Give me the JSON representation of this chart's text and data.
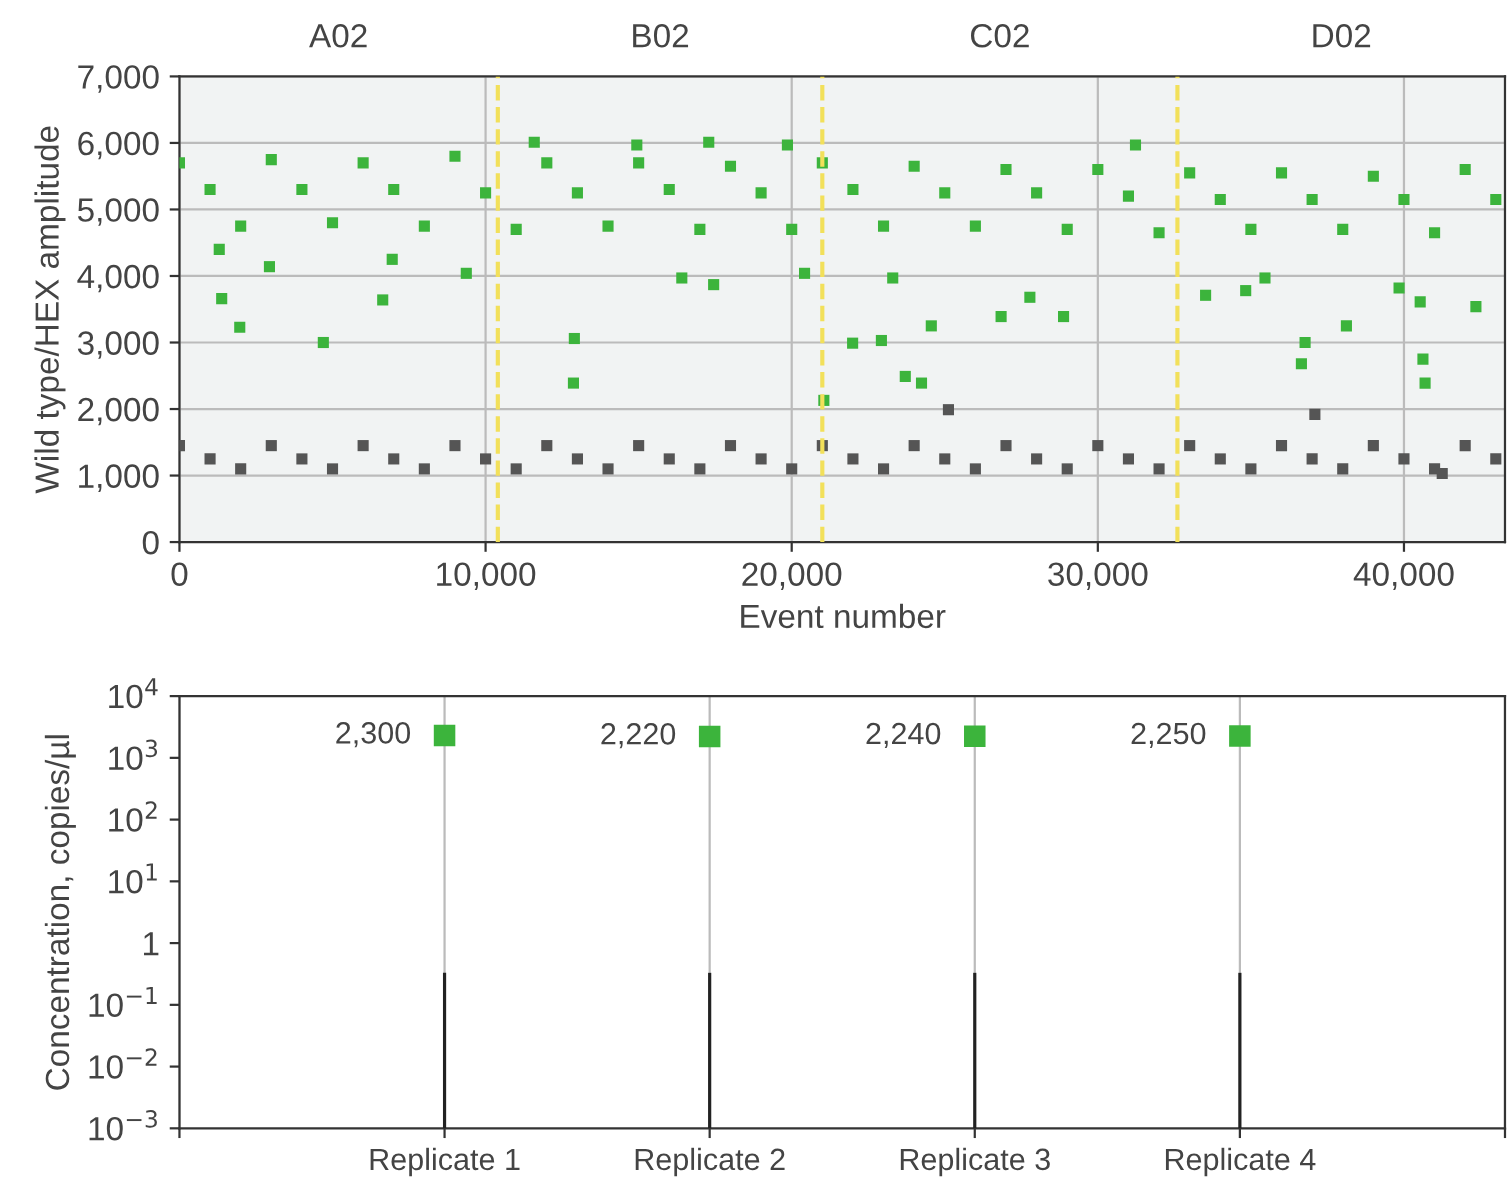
{
  "chart_data": [
    {
      "type": "scatter",
      "xlabel": "Event number",
      "ylabel": "Wild type/HEX amplitude",
      "xlim": [
        0,
        43300
      ],
      "ylim": [
        0,
        7000
      ],
      "xticks": [
        {
          "value": 0,
          "label": "0"
        },
        {
          "value": 10000,
          "label": "10,000"
        },
        {
          "value": 20000,
          "label": "20,000"
        },
        {
          "value": 30000,
          "label": "30,000"
        },
        {
          "value": 40000,
          "label": "40,000"
        }
      ],
      "yticks": [
        {
          "value": 0,
          "label": "0"
        },
        {
          "value": 1000,
          "label": "1,000"
        },
        {
          "value": 2000,
          "label": "2,000"
        },
        {
          "value": 3000,
          "label": "3,000"
        },
        {
          "value": 4000,
          "label": "4,000"
        },
        {
          "value": 5000,
          "label": "5,000"
        },
        {
          "value": 6000,
          "label": "6,000"
        },
        {
          "value": 7000,
          "label": "7,000"
        }
      ],
      "grid": true,
      "legend": false,
      "marker": "square",
      "series": [
        {
          "color": "#3cb43c",
          "x": [
            0,
            1000,
            2000,
            3000,
            4000,
            5000,
            6000,
            7000,
            8000,
            9000,
            10000,
            11000,
            12000,
            13000,
            14000,
            15000,
            16000,
            17000,
            18000,
            19000,
            20000,
            21000,
            22000,
            23000,
            24000,
            25000,
            26000,
            27000,
            28000,
            29000,
            30000,
            31000,
            32000,
            33000,
            34000,
            35000,
            36000,
            37000,
            38000,
            39000,
            40000,
            41000,
            42000,
            43000,
            1300,
            1380,
            1970,
            2940,
            4700,
            6640,
            6950,
            9370,
            11590,
            12870,
            12900,
            14940,
            16410,
            17290,
            17450,
            19860,
            20420,
            21050,
            21990,
            22930,
            23300,
            23710,
            24240,
            24560,
            26840,
            27780,
            28880,
            31230,
            33520,
            34830,
            35460,
            36650,
            36770,
            38120,
            39840,
            40530,
            40620,
            40690,
            42350
          ],
          "values": [
            5700,
            5300,
            4750,
            5750,
            5300,
            4800,
            5700,
            5300,
            4750,
            5800,
            5250,
            4700,
            5700,
            5250,
            4750,
            5700,
            5300,
            4700,
            5650,
            5250,
            4700,
            5700,
            5300,
            4750,
            5650,
            5250,
            4750,
            5600,
            5250,
            4700,
            5600,
            5200,
            4650,
            5550,
            5150,
            4700,
            5550,
            5150,
            4700,
            5500,
            5150,
            4650,
            5600,
            5150,
            4400,
            3660,
            3230,
            4140,
            3000,
            3640,
            4250,
            4040,
            6010,
            2390,
            3060,
            5970,
            3970,
            6010,
            3870,
            5970,
            4040,
            2130,
            2990,
            3030,
            3970,
            2490,
            2390,
            3250,
            3390,
            3680,
            3390,
            5970,
            3710,
            3780,
            3970,
            2680,
            3000,
            3250,
            3820,
            3610,
            2750,
            2390,
            3540
          ]
        },
        {
          "color": "#555555",
          "x": [
            0,
            1000,
            2000,
            3000,
            4000,
            5000,
            6000,
            7000,
            8000,
            9000,
            10000,
            11000,
            12000,
            13000,
            14000,
            15000,
            16000,
            17000,
            18000,
            19000,
            20000,
            21000,
            22000,
            23000,
            24000,
            25000,
            26000,
            27000,
            28000,
            29000,
            30000,
            31000,
            32000,
            33000,
            34000,
            35000,
            36000,
            37000,
            38000,
            39000,
            40000,
            41000,
            42000,
            43000,
            25120,
            37090,
            41250
          ],
          "values": [
            1450,
            1250,
            1100,
            1450,
            1250,
            1100,
            1450,
            1250,
            1100,
            1450,
            1250,
            1100,
            1450,
            1250,
            1100,
            1450,
            1250,
            1100,
            1450,
            1250,
            1100,
            1450,
            1250,
            1100,
            1450,
            1250,
            1100,
            1450,
            1250,
            1100,
            1450,
            1250,
            1100,
            1450,
            1250,
            1100,
            1450,
            1250,
            1100,
            1450,
            1250,
            1100,
            1450,
            1250,
            1990,
            1920,
            1030
          ]
        }
      ],
      "ref_lines": [
        {
          "axis": "x",
          "value": 10400,
          "color": "#f2e05a",
          "line_style": "dashed"
        },
        {
          "axis": "x",
          "value": 21000,
          "color": "#f2e05a",
          "line_style": "dashed"
        },
        {
          "axis": "x",
          "value": 32600,
          "color": "#f2e05a",
          "line_style": "dashed"
        }
      ],
      "bands": [
        {
          "axis": "x",
          "from": 0,
          "to": 10400,
          "label": "A02",
          "color": "#f1f3f3"
        },
        {
          "axis": "x",
          "from": 10400,
          "to": 21000,
          "label": "B02",
          "color": "#f1f3f3"
        },
        {
          "axis": "x",
          "from": 21000,
          "to": 32600,
          "label": "C02",
          "color": "#f1f3f3"
        },
        {
          "axis": "x",
          "from": 32600,
          "to": 43300,
          "label": "D02",
          "color": "#f1f3f3"
        }
      ]
    },
    {
      "type": "scatter",
      "ylabel": "Concentration, copies/µl",
      "log": "y",
      "ylim": [
        0.001,
        10000
      ],
      "yticks": [
        {
          "value": 10000,
          "label": "10$^{4}$"
        },
        {
          "value": 1000,
          "label": "10$^{3}$"
        },
        {
          "value": 100,
          "label": "10$^{2}$"
        },
        {
          "value": 10,
          "label": "10$^{1}$"
        },
        1,
        {
          "value": 0.1,
          "label": "10$^{−1}$"
        },
        {
          "value": 0.01,
          "label": "10$^{−2}$"
        },
        {
          "value": 0.001,
          "label": "10$^{−3}$"
        }
      ],
      "grid": "x",
      "legend": false,
      "categories": [
        null,
        "Replicate 1",
        "Replicate 2",
        "Replicate 3",
        "Replicate 4",
        null
      ],
      "series": [
        {
          "type": "bar",
          "color": "#222222",
          "base": [
            null,
            0.001,
            0.001,
            0.001,
            0.001,
            null
          ],
          "values": [
            null,
            0.329,
            0.329,
            0.329,
            0.329,
            null
          ]
        },
        {
          "color": "#3cb43c",
          "marker": "square",
          "values": [
            null,
            2300,
            2220,
            2240,
            2250,
            null
          ],
          "value_labels": [
            null,
            "2,300",
            "2,220",
            "2,240",
            "2,250",
            null
          ]
        }
      ]
    }
  ]
}
